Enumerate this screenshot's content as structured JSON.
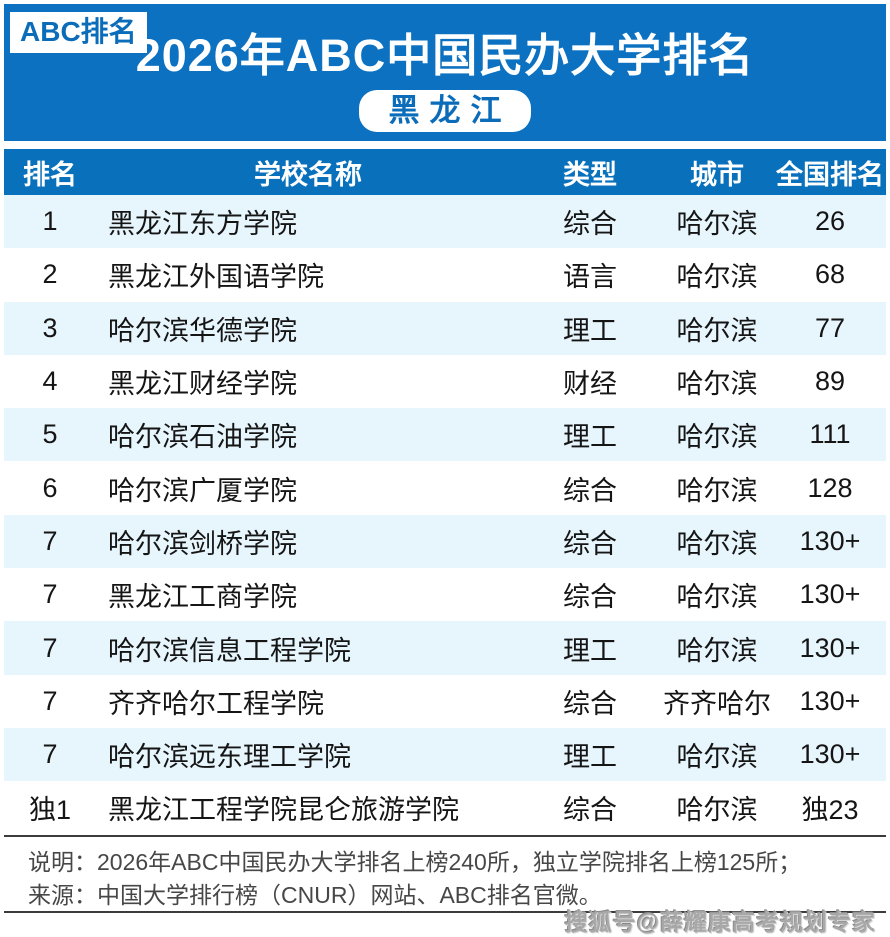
{
  "colors": {
    "banner_blue": "#0b71c0",
    "header_blue": "#0971bc",
    "stripe_blue": "#e7f5fc",
    "accent_text_blue": "#0b6cba",
    "footer_text": "#474747",
    "separator": "#3c3c3c",
    "watermark_gray": "#a8a8a8"
  },
  "banner": {
    "badge": "ABC排名",
    "title": "2026年ABC中国民办大学排名",
    "region": "黑龙江"
  },
  "table": {
    "columns": [
      "排名",
      "学校名称",
      "类型",
      "城市",
      "全国排名"
    ],
    "rows": [
      [
        "1",
        "黑龙江东方学院",
        "综合",
        "哈尔滨",
        "26"
      ],
      [
        "2",
        "黑龙江外国语学院",
        "语言",
        "哈尔滨",
        "68"
      ],
      [
        "3",
        "哈尔滨华德学院",
        "理工",
        "哈尔滨",
        "77"
      ],
      [
        "4",
        "黑龙江财经学院",
        "财经",
        "哈尔滨",
        "89"
      ],
      [
        "5",
        "哈尔滨石油学院",
        "理工",
        "哈尔滨",
        "111"
      ],
      [
        "6",
        "哈尔滨广厦学院",
        "综合",
        "哈尔滨",
        "128"
      ],
      [
        "7",
        "哈尔滨剑桥学院",
        "综合",
        "哈尔滨",
        "130+"
      ],
      [
        "7",
        "黑龙江工商学院",
        "综合",
        "哈尔滨",
        "130+"
      ],
      [
        "7",
        "哈尔滨信息工程学院",
        "理工",
        "哈尔滨",
        "130+"
      ],
      [
        "7",
        "齐齐哈尔工程学院",
        "综合",
        "齐齐哈尔",
        "130+"
      ],
      [
        "7",
        "哈尔滨远东理工学院",
        "理工",
        "哈尔滨",
        "130+"
      ],
      [
        "独1",
        "黑龙江工程学院昆仑旅游学院",
        "综合",
        "哈尔滨",
        "独23"
      ]
    ]
  },
  "footer": {
    "note": "说明：2026年ABC中国民办大学排名上榜240所，独立学院排名上榜125所；",
    "source": "来源：中国大学排行榜（CNUR）网站、ABC排名官微。",
    "watermark": "搜狐号@薛耀康高考规划专家"
  }
}
